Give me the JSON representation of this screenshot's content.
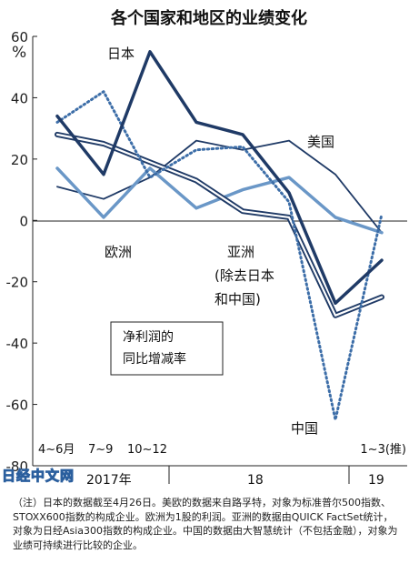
{
  "chart_data": {
    "type": "line",
    "title": "各个国家和地区的业绩变化",
    "ylabel": "%",
    "ylim": [
      -80,
      60
    ],
    "yticks": [
      60,
      40,
      20,
      0,
      -20,
      -40,
      -60,
      -80
    ],
    "x": [
      "2017Q2",
      "2017Q3",
      "2017Q4",
      "2018Q1",
      "2018Q2",
      "2018Q3",
      "2018Q4",
      "2019Q1"
    ],
    "xtick_labels": [
      "4~6月",
      "7~9",
      "10~12",
      "",
      "",
      "",
      "",
      "1~3(推)"
    ],
    "year_labels": [
      "2017年",
      "18",
      "19"
    ],
    "series": [
      {
        "name": "日本",
        "values": [
          34,
          15,
          55,
          32,
          28,
          9,
          -27,
          -13
        ],
        "color": "#1f3a66",
        "style": "solid-thick"
      },
      {
        "name": "美国",
        "values": [
          11,
          7,
          14,
          26,
          23,
          26,
          15,
          -4
        ],
        "color": "#1f3a66",
        "style": "solid"
      },
      {
        "name": "欧洲",
        "values": [
          17,
          1,
          17,
          4,
          10,
          14,
          1,
          -4
        ],
        "color": "#6a97c7",
        "style": "solid-thick"
      },
      {
        "name": "亚洲(除去日本和中国)",
        "values": [
          28,
          25,
          19,
          13,
          3,
          1,
          -31,
          -25
        ],
        "color": "#1f3a66",
        "style": "double"
      },
      {
        "name": "中国",
        "values": [
          32,
          42,
          14,
          23,
          24,
          6,
          -65,
          2
        ],
        "color": "#3d6ea8",
        "style": "dotted"
      }
    ],
    "box_label_line1": "净利润的",
    "box_label_line2": "同比增减率",
    "labels": {
      "japan": "日本",
      "us": "美国",
      "europe": "欧洲",
      "asia_line1": "亚洲",
      "asia_line2": "(除去日本",
      "asia_line3": "和中国)",
      "china": "中国"
    },
    "grid": false
  },
  "watermark": "日经中文网",
  "note": "（注）日本的数据截至4月26日。美欧的数据来自路孚特，对象为标准普尔500指数、STOXX600指数的构成企业。欧洲为1股的利润。亚洲的数据由QUICK FactSet统计，对象为日经Asia300指数的构成企业。中国的数据由大智慧统计（不包括金融），对象为业绩可持续进行比较的企业。"
}
